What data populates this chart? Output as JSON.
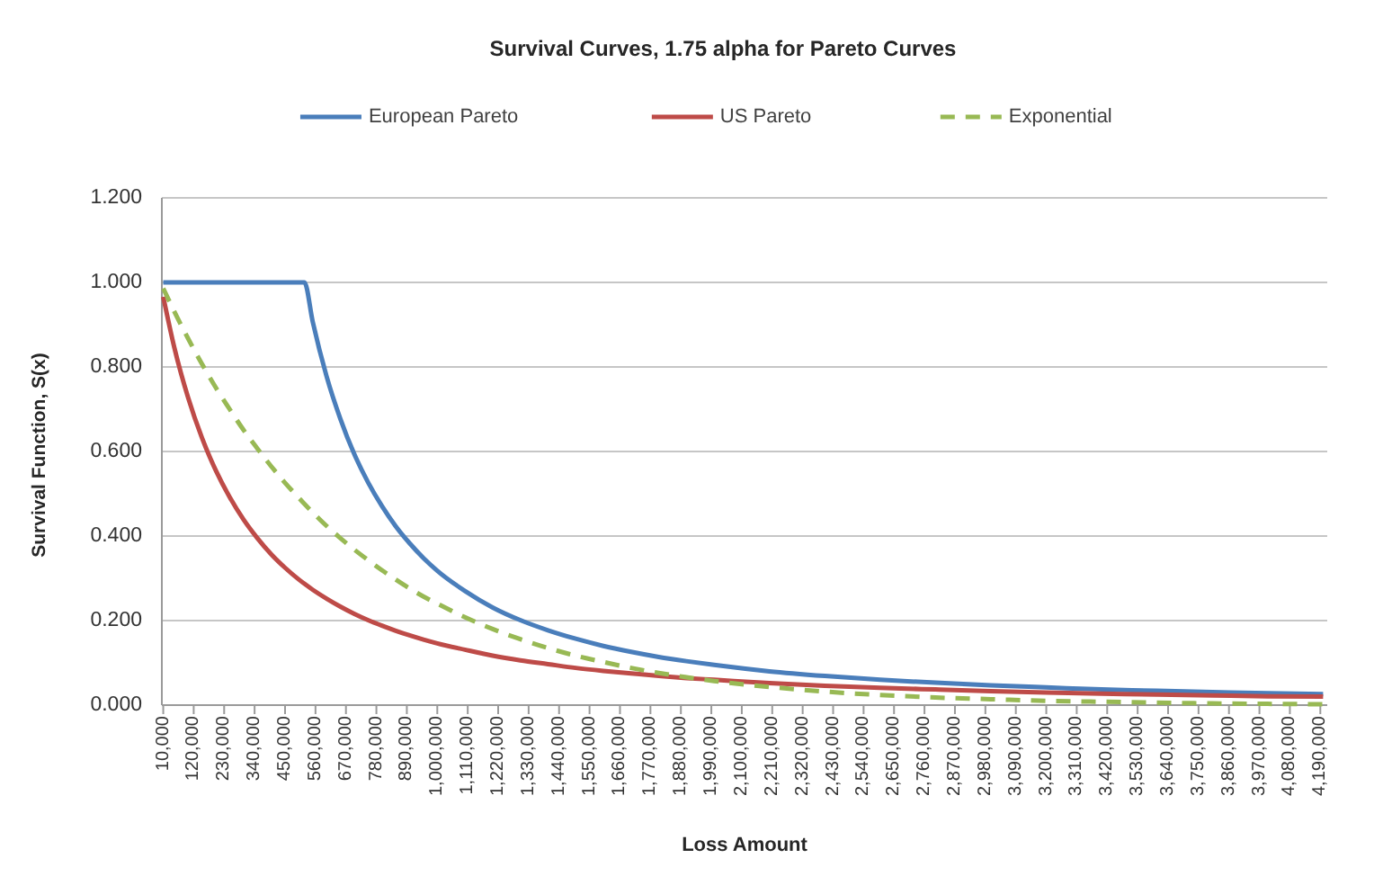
{
  "chart_data": {
    "type": "line",
    "title": "Survival Curves, 1.75 alpha for Pareto Curves",
    "xlabel": "Loss Amount",
    "ylabel": "Survival Function, S(x)",
    "x": [
      10000,
      50000,
      100000,
      150000,
      200000,
      250000,
      300000,
      350000,
      400000,
      450000,
      500000,
      520000,
      550000,
      600000,
      650000,
      700000,
      750000,
      800000,
      850000,
      900000,
      950000,
      1000000,
      1100000,
      1200000,
      1300000,
      1400000,
      1500000,
      1600000,
      1700000,
      1800000,
      1900000,
      2000000,
      2200000,
      2400000,
      2600000,
      2800000,
      3000000,
      3200000,
      3400000,
      3600000,
      3800000,
      4000000,
      4200000
    ],
    "xlim": [
      5000,
      4215000
    ],
    "xticks": [
      {
        "value": 10000,
        "label": "10,000"
      },
      {
        "value": 120000,
        "label": "120,000"
      },
      {
        "value": 230000,
        "label": "230,000"
      },
      {
        "value": 340000,
        "label": "340,000"
      },
      {
        "value": 450000,
        "label": "450,000"
      },
      {
        "value": 560000,
        "label": "560,000"
      },
      {
        "value": 670000,
        "label": "670,000"
      },
      {
        "value": 780000,
        "label": "780,000"
      },
      {
        "value": 890000,
        "label": "890,000"
      },
      {
        "value": 1000000,
        "label": "1,000,000"
      },
      {
        "value": 1110000,
        "label": "1,110,000"
      },
      {
        "value": 1220000,
        "label": "1,220,000"
      },
      {
        "value": 1330000,
        "label": "1,330,000"
      },
      {
        "value": 1440000,
        "label": "1,440,000"
      },
      {
        "value": 1550000,
        "label": "1,550,000"
      },
      {
        "value": 1660000,
        "label": "1,660,000"
      },
      {
        "value": 1770000,
        "label": "1,770,000"
      },
      {
        "value": 1880000,
        "label": "1,880,000"
      },
      {
        "value": 1990000,
        "label": "1,990,000"
      },
      {
        "value": 2100000,
        "label": "2,100,000"
      },
      {
        "value": 2210000,
        "label": "2,210,000"
      },
      {
        "value": 2320000,
        "label": "2,320,000"
      },
      {
        "value": 2430000,
        "label": "2,430,000"
      },
      {
        "value": 2540000,
        "label": "2,540,000"
      },
      {
        "value": 2650000,
        "label": "2,650,000"
      },
      {
        "value": 2760000,
        "label": "2,760,000"
      },
      {
        "value": 2870000,
        "label": "2,870,000"
      },
      {
        "value": 2980000,
        "label": "2,980,000"
      },
      {
        "value": 3090000,
        "label": "3,090,000"
      },
      {
        "value": 3200000,
        "label": "3,200,000"
      },
      {
        "value": 3310000,
        "label": "3,310,000"
      },
      {
        "value": 3420000,
        "label": "3,420,000"
      },
      {
        "value": 3530000,
        "label": "3,530,000"
      },
      {
        "value": 3640000,
        "label": "3,640,000"
      },
      {
        "value": 3750000,
        "label": "3,750,000"
      },
      {
        "value": 3860000,
        "label": "3,860,000"
      },
      {
        "value": 3970000,
        "label": "3,970,000"
      },
      {
        "value": 4080000,
        "label": "4,080,000"
      },
      {
        "value": 4190000,
        "label": "4,190,000"
      }
    ],
    "ylim": [
      0,
      1.2
    ],
    "yticks": [
      {
        "value": 0,
        "label": "0.000"
      },
      {
        "value": 0.2,
        "label": "0.200"
      },
      {
        "value": 0.4,
        "label": "0.400"
      },
      {
        "value": 0.6,
        "label": "0.600"
      },
      {
        "value": 0.8,
        "label": "0.800"
      },
      {
        "value": 1,
        "label": "1.000"
      },
      {
        "value": 1.2,
        "label": "1.200"
      }
    ],
    "grid": "y",
    "legend": "top",
    "series": [
      {
        "name": "European Pareto",
        "color": "#4a7ebb",
        "line_style": "solid",
        "values": [
          1,
          1,
          1,
          1,
          1,
          1,
          1,
          1,
          1,
          1,
          1,
          1,
          0.907,
          0.778,
          0.677,
          0.594,
          0.527,
          0.471,
          0.423,
          0.383,
          0.348,
          0.318,
          0.27,
          0.231,
          0.201,
          0.177,
          0.157,
          0.14,
          0.126,
          0.114,
          0.104,
          0.095,
          0.08,
          0.069,
          0.06,
          0.053,
          0.047,
          0.042,
          0.037,
          0.034,
          0.031,
          0.028,
          0.026
        ]
      },
      {
        "name": "US Pareto",
        "color": "#be4b48",
        "line_style": "solid",
        "values": [
          0.966,
          0.846,
          0.727,
          0.632,
          0.555,
          0.492,
          0.439,
          0.395,
          0.357,
          0.325,
          0.297,
          0.287,
          0.273,
          0.252,
          0.233,
          0.216,
          0.201,
          0.188,
          0.176,
          0.165,
          0.155,
          0.146,
          0.131,
          0.117,
          0.106,
          0.097,
          0.088,
          0.081,
          0.075,
          0.069,
          0.064,
          0.06,
          0.052,
          0.046,
          0.041,
          0.037,
          0.033,
          0.03,
          0.027,
          0.025,
          0.023,
          0.021,
          0.02
        ]
      },
      {
        "name": "Exponential",
        "color": "#98b954",
        "line_style": "dashed",
        "values": [
          0.986,
          0.931,
          0.867,
          0.807,
          0.751,
          0.7,
          0.651,
          0.607,
          0.565,
          0.526,
          0.49,
          0.476,
          0.456,
          0.424,
          0.395,
          0.368,
          0.343,
          0.319,
          0.297,
          0.276,
          0.257,
          0.24,
          0.208,
          0.18,
          0.156,
          0.135,
          0.117,
          0.102,
          0.088,
          0.076,
          0.066,
          0.057,
          0.043,
          0.032,
          0.024,
          0.018,
          0.014,
          0.01,
          0.008,
          0.006,
          0.004,
          0.003,
          0.002
        ]
      }
    ]
  }
}
